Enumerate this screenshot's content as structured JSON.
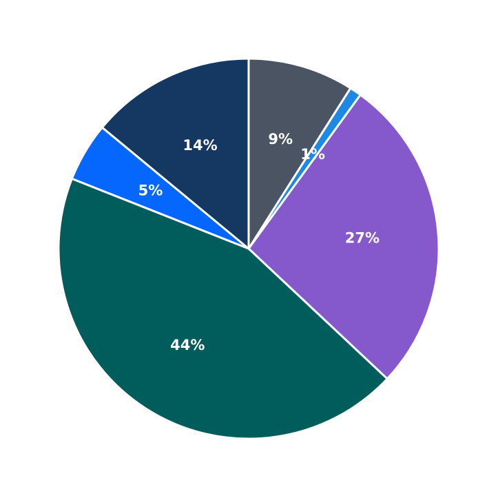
{
  "chart_data": {
    "type": "pie",
    "start_angle": "top",
    "direction": "clockwise",
    "slices": [
      {
        "value": 9,
        "label": "9%",
        "color": "#4a5463"
      },
      {
        "value": 1,
        "label": "1%",
        "color": "#1e88e5"
      },
      {
        "value": 27,
        "label": "27%",
        "color": "#8558cc"
      },
      {
        "value": 44,
        "label": "44%",
        "color": "#015d5c"
      },
      {
        "value": 5,
        "label": "5%",
        "color": "#0667ff"
      },
      {
        "value": 14,
        "label": "14%",
        "color": "#153862"
      }
    ]
  }
}
